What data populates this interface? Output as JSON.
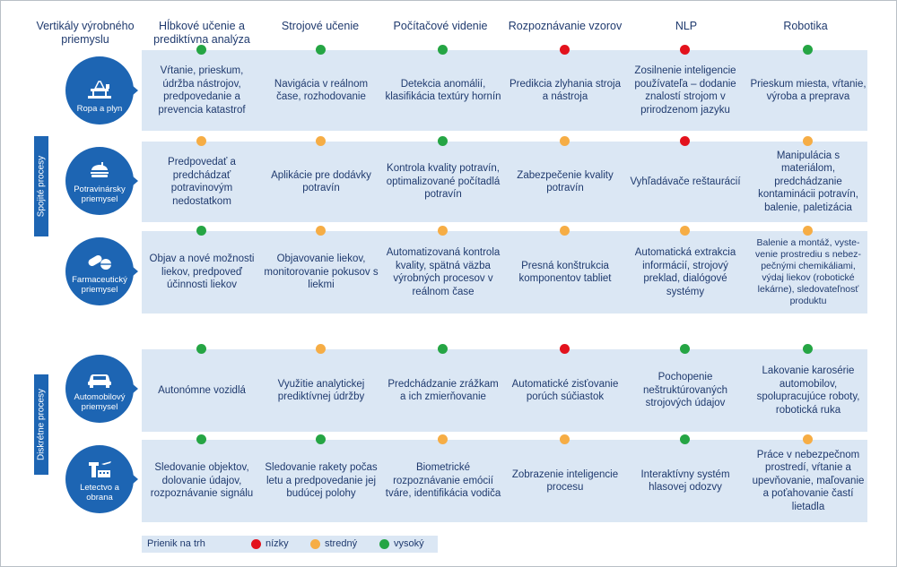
{
  "colors": {
    "low": "#e3121d",
    "medium": "#f6ad45",
    "high": "#25a544",
    "accent": "#1d65b3",
    "band": "#dbe7f4"
  },
  "headers": {
    "vertical": "Vertikály výrobného priemyslu",
    "columns": [
      "Hĺbkové učenie a prediktívna analýza",
      "Strojové učenie",
      "Počítačové videnie",
      "Rozpoznávanie vzorov",
      "NLP",
      "Robotika"
    ]
  },
  "groups": {
    "continuous": "Spojité procesy",
    "discrete": "Diskrétne procesy"
  },
  "rows": [
    {
      "name": "Ropa a plyn",
      "icon": "oil-rig-icon",
      "levels": [
        "high",
        "high",
        "high",
        "low",
        "low",
        "high"
      ],
      "cells": [
        "Vŕtanie, prieskum, údržba nástrojov, predpovedanie a prevencia katastrof",
        "Navigácia v reálnom čase, rozhodovanie",
        "Detekcia anomálií, klasifikácia textúry hornín",
        "Predikcia zlyhania stroja a nástroja",
        "Zosilnenie inteligencie používateľa – dodanie znalostí strojom v prirodzenom jazyku",
        "Prieskum miesta, vŕtanie, výroba a preprava"
      ]
    },
    {
      "name": "Potravinársky priemysel",
      "icon": "food-icon",
      "levels": [
        "medium",
        "medium",
        "high",
        "medium",
        "low",
        "medium"
      ],
      "cells": [
        "Predpovedať a predchádzať potravinovým nedostatkom",
        "Aplikácie pre dodávky potravín",
        "Kontrola kvality potravín, optimalizované počítadlá potravín",
        "Zabezpečenie kvality potravín",
        "Vyhľadávače reštaurácií",
        "Manipulácia s materiálom, predchádzanie kontaminácii potravín, balenie, paletizácia"
      ]
    },
    {
      "name": "Farmaceutický priemysel",
      "icon": "pills-icon",
      "levels": [
        "high",
        "medium",
        "medium",
        "medium",
        "medium",
        "medium"
      ],
      "cells": [
        "Objav a nové možnosti liekov, predpoveď účinnosti liekov",
        "Objavovanie liekov, monitorovanie pokusov s liekmi",
        "Automatizovaná kontrola kvality, spätná väzba výrobných procesov v reálnom čase",
        "Presná konštrukcia komponentov tabliet",
        "Automatická extrakcia informácií, strojový preklad, dialógové systémy",
        "Balenie a montáž, vyste­venie prostrediu s nebez­pečnými chemikáliami, výdaj liekov (robotické lekárne), sledovateľnosť produktu"
      ]
    },
    {
      "name": "Automobilový priemysel",
      "icon": "car-icon",
      "levels": [
        "high",
        "medium",
        "high",
        "low",
        "high",
        "high"
      ],
      "cells": [
        "Autonómne vozidlá",
        "Využitie analytickej prediktívnej údržby",
        "Predchádzanie zrážkam a ich zmierňovanie",
        "Automatické zisťovanie porúch súčiastok",
        "Pochopenie neštruktúrovaných strojových údajov",
        "Lakovanie karosérie automobilov, spolupracujúce roboty, robotická ruka"
      ]
    },
    {
      "name": "Letectvo a obrana",
      "icon": "airport-icon",
      "levels": [
        "high",
        "high",
        "medium",
        "medium",
        "high",
        "medium"
      ],
      "cells": [
        "Sledovanie objektov, dolovanie údajov, rozpoznávanie signálu",
        "Sledovanie rakety počas letu a predpovedanie jej budúcej polohy",
        "Biometrické rozpoznávanie emócií tváre, identifikácia vodiča",
        "Zobrazenie inteligencie procesu",
        "Interaktívny systém hlasovej odozvy",
        "Práce v nebezpečnom prostredí, vŕtanie a upevňovanie, maľovanie a poťahovanie častí lietadla"
      ]
    }
  ],
  "legend": {
    "title": "Prienik na trh",
    "low": "nízky",
    "medium": "stredný",
    "high": "vysoký"
  }
}
